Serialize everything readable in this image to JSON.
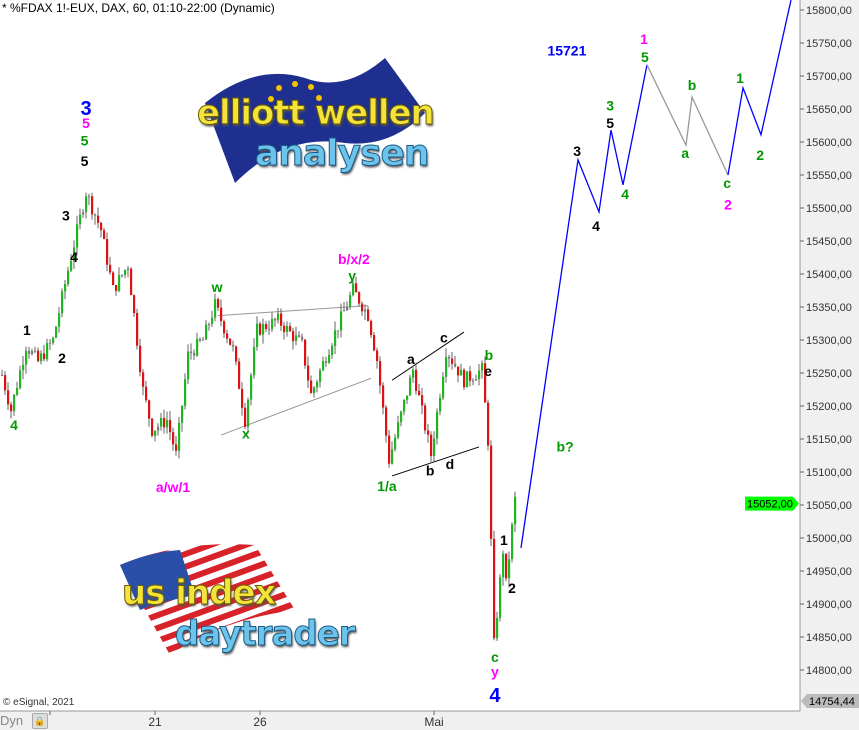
{
  "header": {
    "title": "* %FDAX 1!-EUX, DAX, 60, 01:10-22:00 (Dynamic)"
  },
  "footer": {
    "copyright": "© eSignal, 2021",
    "mode": "Dyn",
    "lock_icon": "lock-icon"
  },
  "logos": {
    "top": {
      "line1": "elliott wellen",
      "line2": "analysen",
      "flag": "eu-flag"
    },
    "bottom": {
      "line1": "us index",
      "line2": "daytrader",
      "flag": "us-flag"
    }
  },
  "chart_data": {
    "type": "candlestick",
    "instrument": "%FDAX 1!-EUX",
    "interval": "60",
    "ylim": [
      14754.44,
      15820
    ],
    "y_ticks": [
      14800,
      14850,
      14900,
      14950,
      15000,
      15050,
      15100,
      15150,
      15200,
      15250,
      15300,
      15350,
      15400,
      15450,
      15500,
      15550,
      15600,
      15650,
      15700,
      15750,
      15800
    ],
    "y_tick_labels": [
      "14800,00",
      "14850,00",
      "14900,00",
      "14950,00",
      "15000,00",
      "15050,00",
      "15100,00",
      "15150,00",
      "15200,00",
      "15250,00",
      "15300,00",
      "15350,00",
      "15400,00",
      "15450,00",
      "15500,00",
      "15550,00",
      "15600,00",
      "15650,00",
      "15700,00",
      "15750,00",
      "15800,00"
    ],
    "last_price_label": "15052,00",
    "low_price_label": "14754,44",
    "colors": {
      "up": "#22b422",
      "down": "#e01010",
      "neutral": "#7a7a7a",
      "last": "#00ff00",
      "forecast": "#0000ff",
      "forecast_alt": "#999999"
    },
    "x_ticks": [
      {
        "bar": 51,
        "label": "21"
      },
      {
        "bar": 86,
        "label": "26"
      },
      {
        "bar": 144,
        "label": "Mai"
      }
    ],
    "price_path": [
      [
        0,
        15247
      ],
      [
        3,
        15194
      ],
      [
        8,
        15292
      ],
      [
        12,
        15267
      ],
      [
        17,
        15300
      ],
      [
        22,
        15406
      ],
      [
        28,
        15524
      ],
      [
        33,
        15467
      ],
      [
        37,
        15376
      ],
      [
        42,
        15414
      ],
      [
        47,
        15224
      ],
      [
        50,
        15164
      ],
      [
        55,
        15179
      ],
      [
        58,
        15126
      ],
      [
        62,
        15277
      ],
      [
        67,
        15300
      ],
      [
        71,
        15353
      ],
      [
        77,
        15285
      ],
      [
        81,
        15179
      ],
      [
        85,
        15315
      ],
      [
        92,
        15330
      ],
      [
        100,
        15292
      ],
      [
        103,
        15217
      ],
      [
        110,
        15300
      ],
      [
        117,
        15376
      ],
      [
        122,
        15338
      ],
      [
        125,
        15270
      ],
      [
        129,
        15118
      ],
      [
        137,
        15255
      ],
      [
        143,
        15126
      ],
      [
        148,
        15285
      ],
      [
        154,
        15239
      ],
      [
        160,
        15255
      ],
      [
        162,
        15148
      ],
      [
        164,
        14838
      ],
      [
        167,
        14982
      ],
      [
        168,
        14929
      ],
      [
        171,
        15058
      ]
    ],
    "forecast_path": [
      [
        173,
        14985
      ],
      [
        192,
        15573
      ],
      [
        199,
        15494
      ],
      [
        203,
        15618
      ],
      [
        207,
        15535
      ],
      [
        215,
        15717
      ]
    ],
    "forecast_alt_path": [
      [
        215,
        15717
      ],
      [
        228,
        15595
      ],
      [
        230,
        15668
      ],
      [
        242,
        15550
      ]
    ],
    "forecast_path2": [
      [
        242,
        15550
      ],
      [
        247,
        15682
      ],
      [
        253,
        15611
      ],
      [
        263,
        15815
      ]
    ],
    "trendlines": [
      {
        "color": "#999999",
        "points": [
          [
            72,
            15337
          ],
          [
            122,
            15352
          ]
        ]
      },
      {
        "color": "#999999",
        "points": [
          [
            73,
            15156
          ],
          [
            123,
            15242
          ]
        ]
      },
      {
        "color": "#000000",
        "points": [
          [
            130,
            15239
          ],
          [
            154,
            15312
          ]
        ]
      },
      {
        "color": "#000000",
        "points": [
          [
            130,
            15094
          ],
          [
            159,
            15138
          ]
        ]
      }
    ],
    "annotations": [
      {
        "text": "3",
        "color": "#0000ff",
        "bar": 28,
        "price": 15659,
        "big": true
      },
      {
        "text": "5",
        "color": "#ff00ff",
        "bar": 28,
        "price": 15629
      },
      {
        "text": "5",
        "color": "#009a00",
        "bar": 27.5,
        "price": 15602
      },
      {
        "text": "5",
        "color": "#000000",
        "bar": 27.5,
        "price": 15571
      },
      {
        "text": "3",
        "color": "#000000",
        "bar": 21.3,
        "price": 15489
      },
      {
        "text": "4",
        "color": "#000000",
        "bar": 24,
        "price": 15426
      },
      {
        "text": "1",
        "color": "#000000",
        "bar": 8.3,
        "price": 15315
      },
      {
        "text": "2",
        "color": "#000000",
        "bar": 20,
        "price": 15273
      },
      {
        "text": "4",
        "color": "#009a00",
        "bar": 4,
        "price": 15171
      },
      {
        "text": "a/w/1",
        "color": "#ff00ff",
        "bar": 57,
        "price": 15077
      },
      {
        "text": "w",
        "color": "#009a00",
        "bar": 71.7,
        "price": 15380
      },
      {
        "text": "x",
        "color": "#009a00",
        "bar": 81.3,
        "price": 15158
      },
      {
        "text": "b/x/2",
        "color": "#ff00ff",
        "bar": 117.3,
        "price": 15423
      },
      {
        "text": "y",
        "color": "#009a00",
        "bar": 116.7,
        "price": 15398
      },
      {
        "text": "a",
        "color": "#000000",
        "bar": 136.3,
        "price": 15271
      },
      {
        "text": "c",
        "color": "#000000",
        "bar": 147.3,
        "price": 15304
      },
      {
        "text": "b",
        "color": "#000000",
        "bar": 142.7,
        "price": 15102
      },
      {
        "text": "d",
        "color": "#000000",
        "bar": 149.3,
        "price": 15112
      },
      {
        "text": "1/a",
        "color": "#009a00",
        "bar": 128.3,
        "price": 15079
      },
      {
        "text": "b",
        "color": "#009a00",
        "bar": 162.3,
        "price": 15277
      },
      {
        "text": "e",
        "color": "#000000",
        "bar": 162,
        "price": 15253
      },
      {
        "text": "1",
        "color": "#000000",
        "bar": 167.3,
        "price": 14997
      },
      {
        "text": "2",
        "color": "#000000",
        "bar": 170,
        "price": 14924
      },
      {
        "text": "c",
        "color": "#009a00",
        "bar": 164.3,
        "price": 14820
      },
      {
        "text": "y",
        "color": "#ff00ff",
        "bar": 164.3,
        "price": 14798
      },
      {
        "text": "4",
        "color": "#0000ff",
        "bar": 164.3,
        "price": 14770,
        "big": true
      },
      {
        "text": "b?",
        "color": "#009a00",
        "bar": 187.7,
        "price": 15139
      },
      {
        "text": "15721",
        "color": "#0000ff",
        "bar": 188.3,
        "price": 15739
      },
      {
        "text": "3",
        "color": "#000000",
        "bar": 191.7,
        "price": 15586
      },
      {
        "text": "4",
        "color": "#000000",
        "bar": 198,
        "price": 15473
      },
      {
        "text": "3",
        "color": "#009a00",
        "bar": 202.7,
        "price": 15655
      },
      {
        "text": "5",
        "color": "#000000",
        "bar": 202.7,
        "price": 15629
      },
      {
        "text": "4",
        "color": "#009a00",
        "bar": 207.7,
        "price": 15521
      },
      {
        "text": "1",
        "color": "#ff00ff",
        "bar": 214,
        "price": 15756
      },
      {
        "text": "5",
        "color": "#009a00",
        "bar": 214.3,
        "price": 15729
      },
      {
        "text": "b",
        "color": "#009a00",
        "bar": 230,
        "price": 15686
      },
      {
        "text": "a",
        "color": "#009a00",
        "bar": 227.7,
        "price": 15583
      },
      {
        "text": "c",
        "color": "#009a00",
        "bar": 241.7,
        "price": 15538
      },
      {
        "text": "2",
        "color": "#ff00ff",
        "bar": 242,
        "price": 15505
      },
      {
        "text": "1",
        "color": "#009a00",
        "bar": 246,
        "price": 15697
      },
      {
        "text": "2",
        "color": "#009a00",
        "bar": 252.7,
        "price": 15580
      }
    ]
  }
}
